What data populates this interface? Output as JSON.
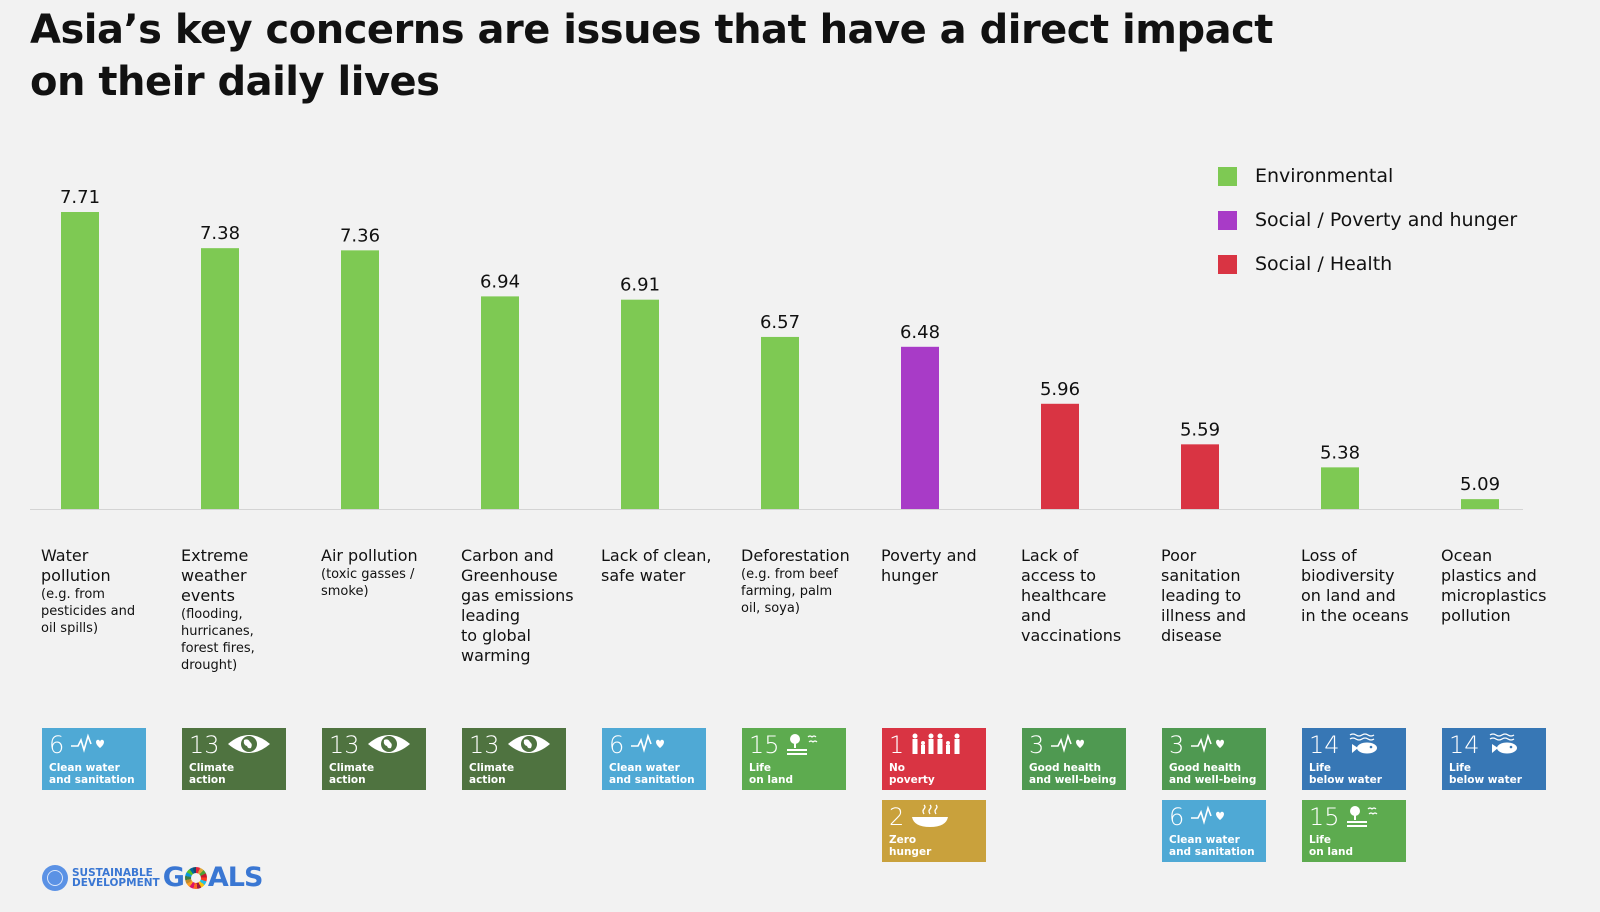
{
  "title": "Asia’s key concerns are issues that have a direct impact on their daily lives",
  "title_lines": [
    "Asia’s key concerns are issues that have a direct impact",
    "on their daily lives"
  ],
  "legend": [
    {
      "label": "Environmental",
      "color": "#7ec953"
    },
    {
      "label": "Social / Poverty and hunger",
      "color": "#a83bc7"
    },
    {
      "label": "Social / Health",
      "color": "#d93443"
    }
  ],
  "chart_data": {
    "type": "bar",
    "title": "Asia’s key concerns are issues that have a direct impact on their daily lives",
    "xlabel": "",
    "ylabel": "",
    "ylim": [
      5.0,
      7.8
    ],
    "grid": false,
    "legend_position": "top-right",
    "categories": [
      "Water pollution",
      "Extreme weather events",
      "Air pollution",
      "Carbon and Greenhouse gas emissions leading to global warming",
      "Lack of clean, safe water",
      "Deforestation",
      "Poverty and hunger",
      "Lack of access to healthcare and vaccinations",
      "Poor sanitation leading to illness and disease",
      "Loss of biodiversity on land and in the oceans",
      "Ocean plastics and microplastics pollution"
    ],
    "values": [
      7.71,
      7.38,
      7.36,
      6.94,
      6.91,
      6.57,
      6.48,
      5.96,
      5.59,
      5.38,
      5.09
    ],
    "value_labels": [
      "7.71",
      "7.38",
      "7.36",
      "6.94",
      "6.91",
      "6.57",
      "6.48",
      "5.96",
      "5.59",
      "5.38",
      "5.09"
    ],
    "groups": [
      "Environmental",
      "Environmental",
      "Environmental",
      "Environmental",
      "Environmental",
      "Environmental",
      "Social / Poverty and hunger",
      "Social / Health",
      "Social / Health",
      "Environmental",
      "Environmental"
    ],
    "bar_colors": [
      "#7ec953",
      "#7ec953",
      "#7ec953",
      "#7ec953",
      "#7ec953",
      "#7ec953",
      "#a83bc7",
      "#d93443",
      "#d93443",
      "#7ec953",
      "#7ec953"
    ]
  },
  "category_labels": [
    {
      "main": "Water\npollution",
      "sub": "(e.g. from\npesticides and\noil spills)"
    },
    {
      "main": "Extreme\nweather\nevents",
      "sub": "(flooding,\nhurricanes,\nforest fires,\ndrought)"
    },
    {
      "main": "Air pollution",
      "sub": "(toxic gasses /\nsmoke)"
    },
    {
      "main": "Carbon and\nGreenhouse\ngas emissions\nleading\nto global\nwarming",
      "sub": ""
    },
    {
      "main": "Lack of clean,\nsafe water",
      "sub": ""
    },
    {
      "main": "Deforestation",
      "sub": "(e.g. from beef\nfarming, palm\noil, soya)"
    },
    {
      "main": "Poverty and\nhunger",
      "sub": ""
    },
    {
      "main": "Lack of\naccess to\nhealthcare\nand\nvaccinations",
      "sub": ""
    },
    {
      "main": "Poor\nsanitation\nleading to\nillness and\ndisease",
      "sub": ""
    },
    {
      "main": "Loss of\nbiodiversity\non land and\nin the oceans",
      "sub": ""
    },
    {
      "main": "Ocean\nplastics and\nmicroplastics\npollution",
      "sub": ""
    }
  ],
  "sdg_tiles": [
    [
      {
        "num": "6",
        "name": "Clean water\nand sanitation",
        "color": "#4fa9d5",
        "icon": "water-drop-heartbeat-icon"
      }
    ],
    [
      {
        "num": "13",
        "name": "Climate\naction",
        "color": "#4f7340",
        "icon": "eye-globe-icon"
      }
    ],
    [
      {
        "num": "13",
        "name": "Climate\naction",
        "color": "#4f7340",
        "icon": "eye-globe-icon"
      }
    ],
    [
      {
        "num": "13",
        "name": "Climate\naction",
        "color": "#4f7340",
        "icon": "eye-globe-icon"
      }
    ],
    [
      {
        "num": "6",
        "name": "Clean water\nand sanitation",
        "color": "#4fa9d5",
        "icon": "water-drop-heartbeat-icon"
      }
    ],
    [
      {
        "num": "15",
        "name": "Life\non land",
        "color": "#5dab4f",
        "icon": "tree-birds-icon"
      }
    ],
    [
      {
        "num": "1",
        "name": "No\npoverty",
        "color": "#d93443",
        "icon": "family-icon"
      },
      {
        "num": "2",
        "name": "Zero\nhunger",
        "color": "#c9a13c",
        "icon": "bowl-icon"
      }
    ],
    [
      {
        "num": "3",
        "name": "Good health\nand well-being",
        "color": "#4f9951",
        "icon": "heartbeat-icon"
      }
    ],
    [
      {
        "num": "3",
        "name": "Good health\nand well-being",
        "color": "#4f9951",
        "icon": "heartbeat-icon"
      },
      {
        "num": "6",
        "name": "Clean water\nand sanitation",
        "color": "#4fa9d5",
        "icon": "water-drop-heartbeat-icon"
      }
    ],
    [
      {
        "num": "14",
        "name": "Life\nbelow water",
        "color": "#3777b5",
        "icon": "fish-waves-icon"
      },
      {
        "num": "15",
        "name": "Life\non land",
        "color": "#5dab4f",
        "icon": "tree-birds-icon"
      }
    ],
    [
      {
        "num": "14",
        "name": "Life\nbelow water",
        "color": "#3777b5",
        "icon": "fish-waves-icon"
      }
    ]
  ],
  "logo": {
    "line1": "SUSTAINABLE",
    "line2": "DEVELOPMENT",
    "goals_g": "G",
    "goals_rest": "ALS"
  }
}
